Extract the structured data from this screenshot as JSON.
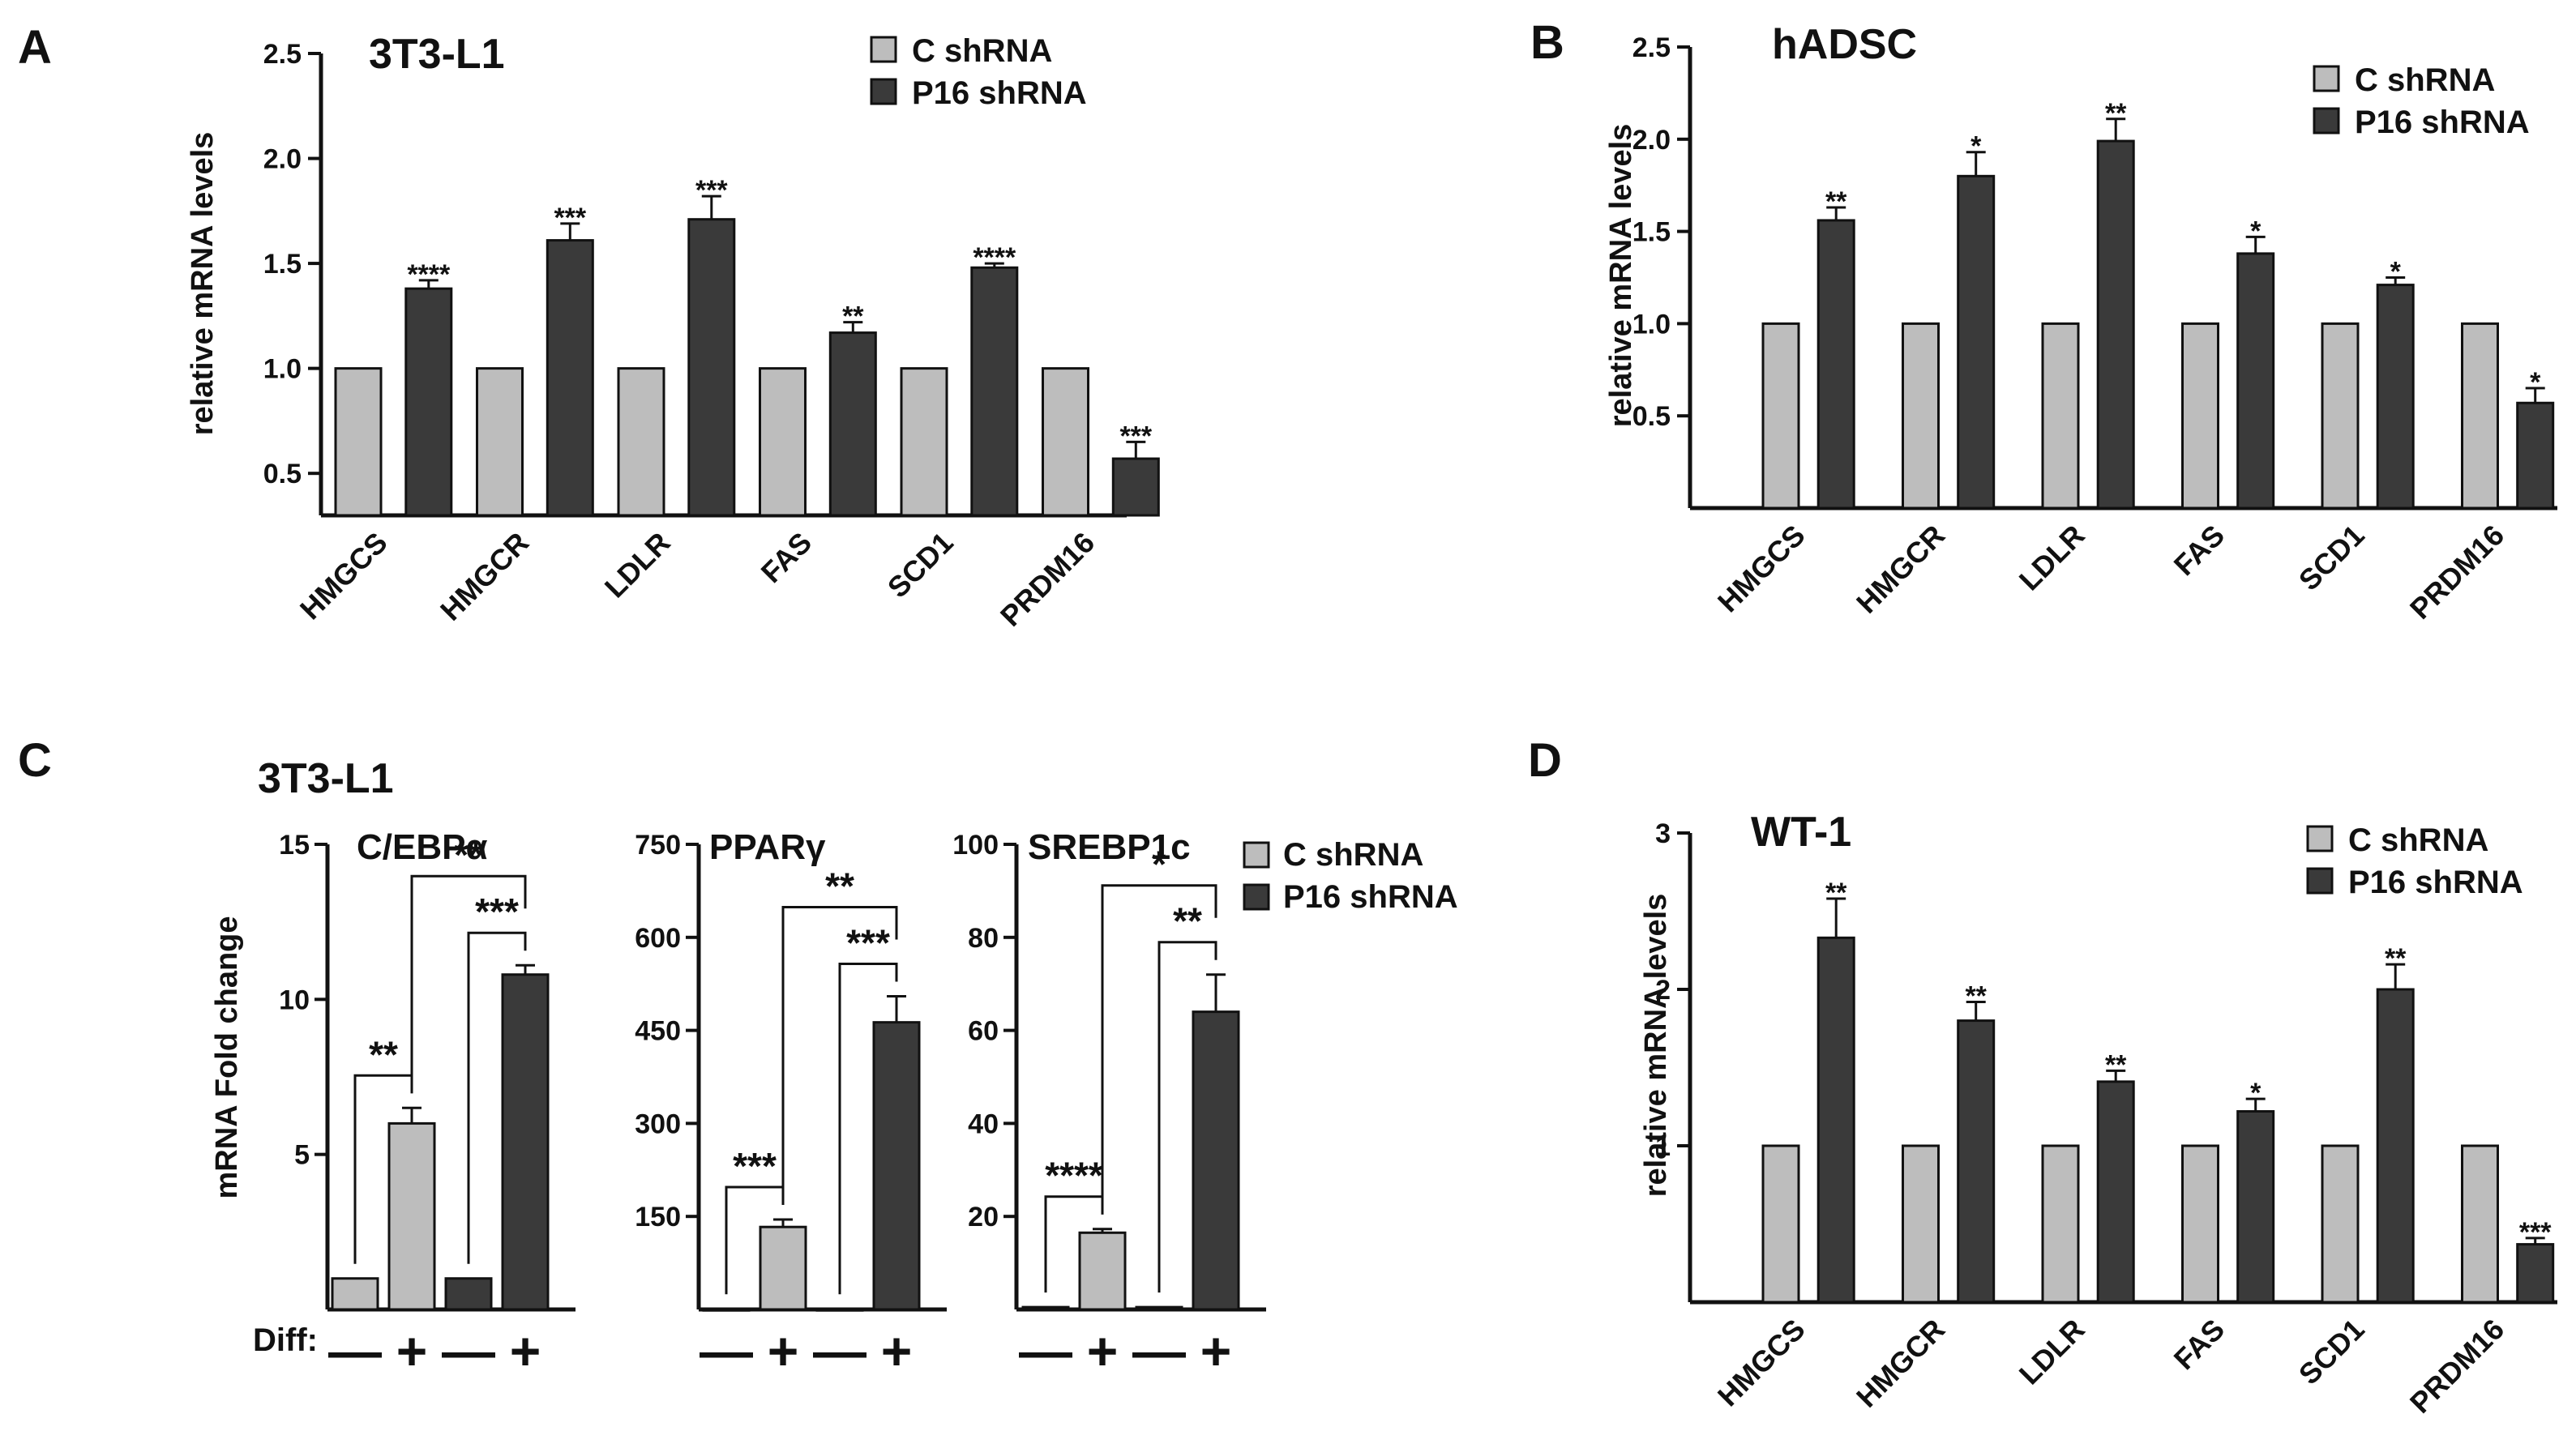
{
  "colors": {
    "control": "#bdbdbd",
    "p16": "#3a3a3a",
    "edge": "#111111"
  },
  "legend": {
    "control": "C shRNA",
    "p16": "P16 shRNA"
  },
  "chart_data": [
    {
      "panel": "A",
      "title": "3T3-L1",
      "type": "bar",
      "ylabel": "relative mRNA levels",
      "ylim": [
        0.3,
        2.5
      ],
      "yticks": [
        "0.5",
        "1.0",
        "1.5",
        "2.0",
        "2.5"
      ],
      "categories": [
        "HMGCS",
        "HMGCR",
        "LDLR",
        "FAS",
        "SCD1",
        "PRDM16"
      ],
      "series": [
        {
          "name": "C shRNA",
          "values": [
            1.0,
            1.0,
            1.0,
            1.0,
            1.0,
            1.0
          ],
          "errors": [
            0,
            0,
            0,
            0,
            0,
            0
          ]
        },
        {
          "name": "P16 shRNA",
          "values": [
            1.38,
            1.61,
            1.71,
            1.17,
            1.48,
            0.57
          ],
          "errors": [
            0.04,
            0.08,
            0.11,
            0.05,
            0.02,
            0.08
          ]
        }
      ],
      "significance": [
        "****",
        "***",
        "***",
        "**",
        "****",
        "***"
      ],
      "legend_position": "top-right"
    },
    {
      "panel": "B",
      "title": "hADSC",
      "type": "bar",
      "ylabel": "relative mRNA levels",
      "ylim": [
        0.0,
        2.5
      ],
      "yticks": [
        "0.5",
        "1.0",
        "1.5",
        "2.0",
        "2.5"
      ],
      "categories": [
        "HMGCS",
        "HMGCR",
        "LDLR",
        "FAS",
        "SCD1",
        "PRDM16"
      ],
      "series": [
        {
          "name": "C shRNA",
          "values": [
            1.0,
            1.0,
            1.0,
            1.0,
            1.0,
            1.0
          ],
          "errors": [
            0,
            0,
            0,
            0,
            0,
            0
          ]
        },
        {
          "name": "P16 shRNA",
          "values": [
            1.56,
            1.8,
            1.99,
            1.38,
            1.21,
            0.57
          ],
          "errors": [
            0.07,
            0.13,
            0.12,
            0.09,
            0.04,
            0.08
          ]
        }
      ],
      "significance": [
        "**",
        "*",
        "**",
        "*",
        "*",
        "*"
      ],
      "legend_position": "top-right"
    },
    {
      "panel": "C",
      "title": "3T3-L1",
      "type": "bar",
      "ylabel": "mRNA Fold change",
      "diff_label": "Diff:",
      "diff_signs": [
        "—",
        "+",
        "—",
        "+"
      ],
      "subplots": [
        {
          "title": "C/EBPα",
          "ylim": [
            0,
            15
          ],
          "yticks": [
            "5",
            "10",
            "15"
          ],
          "series": [
            "C shRNA",
            "C shRNA",
            "P16 shRNA",
            "P16 shRNA"
          ],
          "values": [
            1.0,
            6.0,
            1.0,
            10.8
          ],
          "errors": [
            0,
            0.5,
            0,
            0.3
          ],
          "brackets": [
            {
              "from": 0,
              "to": 1,
              "label": "**"
            },
            {
              "from": 2,
              "to": 3,
              "label": "***"
            },
            {
              "from": 1,
              "to": 3,
              "label": "**"
            }
          ]
        },
        {
          "title": "PPARγ",
          "ylim": [
            0,
            750
          ],
          "yticks": [
            "150",
            "300",
            "450",
            "600",
            "750"
          ],
          "series": [
            "C shRNA",
            "C shRNA",
            "P16 shRNA",
            "P16 shRNA"
          ],
          "values": [
            1,
            133,
            1,
            463
          ],
          "errors": [
            0,
            12,
            0,
            42
          ],
          "brackets": [
            {
              "from": 0,
              "to": 1,
              "label": "***"
            },
            {
              "from": 2,
              "to": 3,
              "label": "***"
            },
            {
              "from": 1,
              "to": 3,
              "label": "**"
            }
          ]
        },
        {
          "title": "SREBP1c",
          "ylim": [
            0,
            100
          ],
          "yticks": [
            "20",
            "40",
            "60",
            "80",
            "100"
          ],
          "series": [
            "C shRNA",
            "C shRNA",
            "P16 shRNA",
            "P16 shRNA"
          ],
          "values": [
            0.5,
            16.5,
            0.5,
            64
          ],
          "errors": [
            0,
            0.8,
            0,
            8
          ],
          "brackets": [
            {
              "from": 0,
              "to": 1,
              "label": "****"
            },
            {
              "from": 2,
              "to": 3,
              "label": "**"
            },
            {
              "from": 1,
              "to": 3,
              "label": "*"
            }
          ]
        }
      ],
      "legend_position": "top-right"
    },
    {
      "panel": "D",
      "title": "WT-1",
      "type": "bar",
      "ylabel": "relative mRNA levels",
      "ylim": [
        0.0,
        3.0
      ],
      "yticks": [
        "1",
        "2",
        "3"
      ],
      "categories": [
        "HMGCS",
        "HMGCR",
        "LDLR",
        "FAS",
        "SCD1",
        "PRDM16"
      ],
      "series": [
        {
          "name": "C shRNA",
          "values": [
            1.0,
            1.0,
            1.0,
            1.0,
            1.0,
            1.0
          ],
          "errors": [
            0,
            0,
            0,
            0,
            0,
            0
          ]
        },
        {
          "name": "P16 shRNA",
          "values": [
            2.33,
            1.8,
            1.41,
            1.22,
            2.0,
            0.37
          ],
          "errors": [
            0.25,
            0.12,
            0.07,
            0.08,
            0.16,
            0.04
          ]
        }
      ],
      "significance": [
        "**",
        "**",
        "**",
        "*",
        "**",
        "***"
      ],
      "legend_position": "top-right"
    }
  ]
}
